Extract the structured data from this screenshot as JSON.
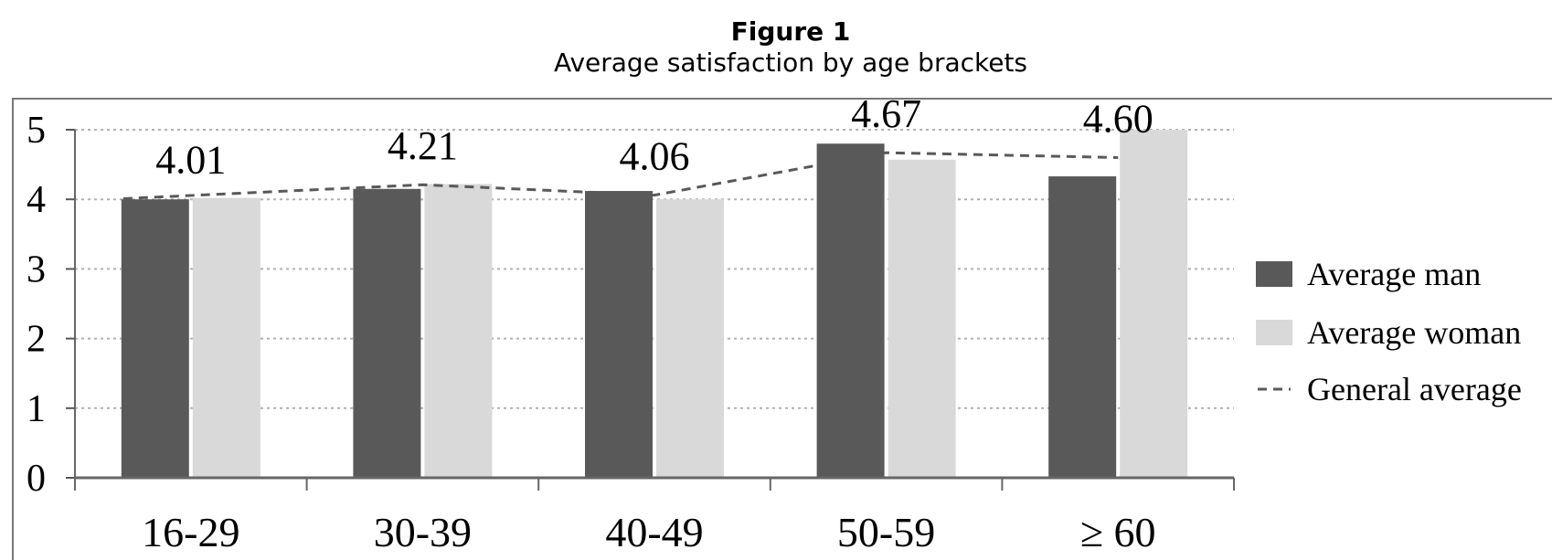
{
  "figure_label": "Figure 1",
  "figure_caption": "Average satisfaction by age brackets",
  "chart_data": {
    "type": "bar",
    "categories": [
      "16-29",
      "30-39",
      "40-49",
      "50-59",
      "≥ 60"
    ],
    "series": [
      {
        "name": "Average man",
        "values": [
          4.0,
          4.15,
          4.12,
          4.8,
          4.33
        ],
        "color": "#595959"
      },
      {
        "name": "Average woman",
        "values": [
          4.02,
          4.22,
          4.0,
          4.57,
          5.0
        ],
        "color": "#d9d9d9"
      }
    ],
    "line_series": {
      "name": "General average",
      "values": [
        4.01,
        4.21,
        4.06,
        4.67,
        4.6
      ],
      "color": "#595959",
      "style": "dashed"
    },
    "data_labels": [
      "4.01",
      "4.21",
      "4.06",
      "4.67",
      "4.60"
    ],
    "y_ticks": [
      0,
      1,
      2,
      3,
      4,
      5
    ],
    "ylim": [
      0,
      5
    ],
    "grid": true,
    "legend_position": "right"
  }
}
